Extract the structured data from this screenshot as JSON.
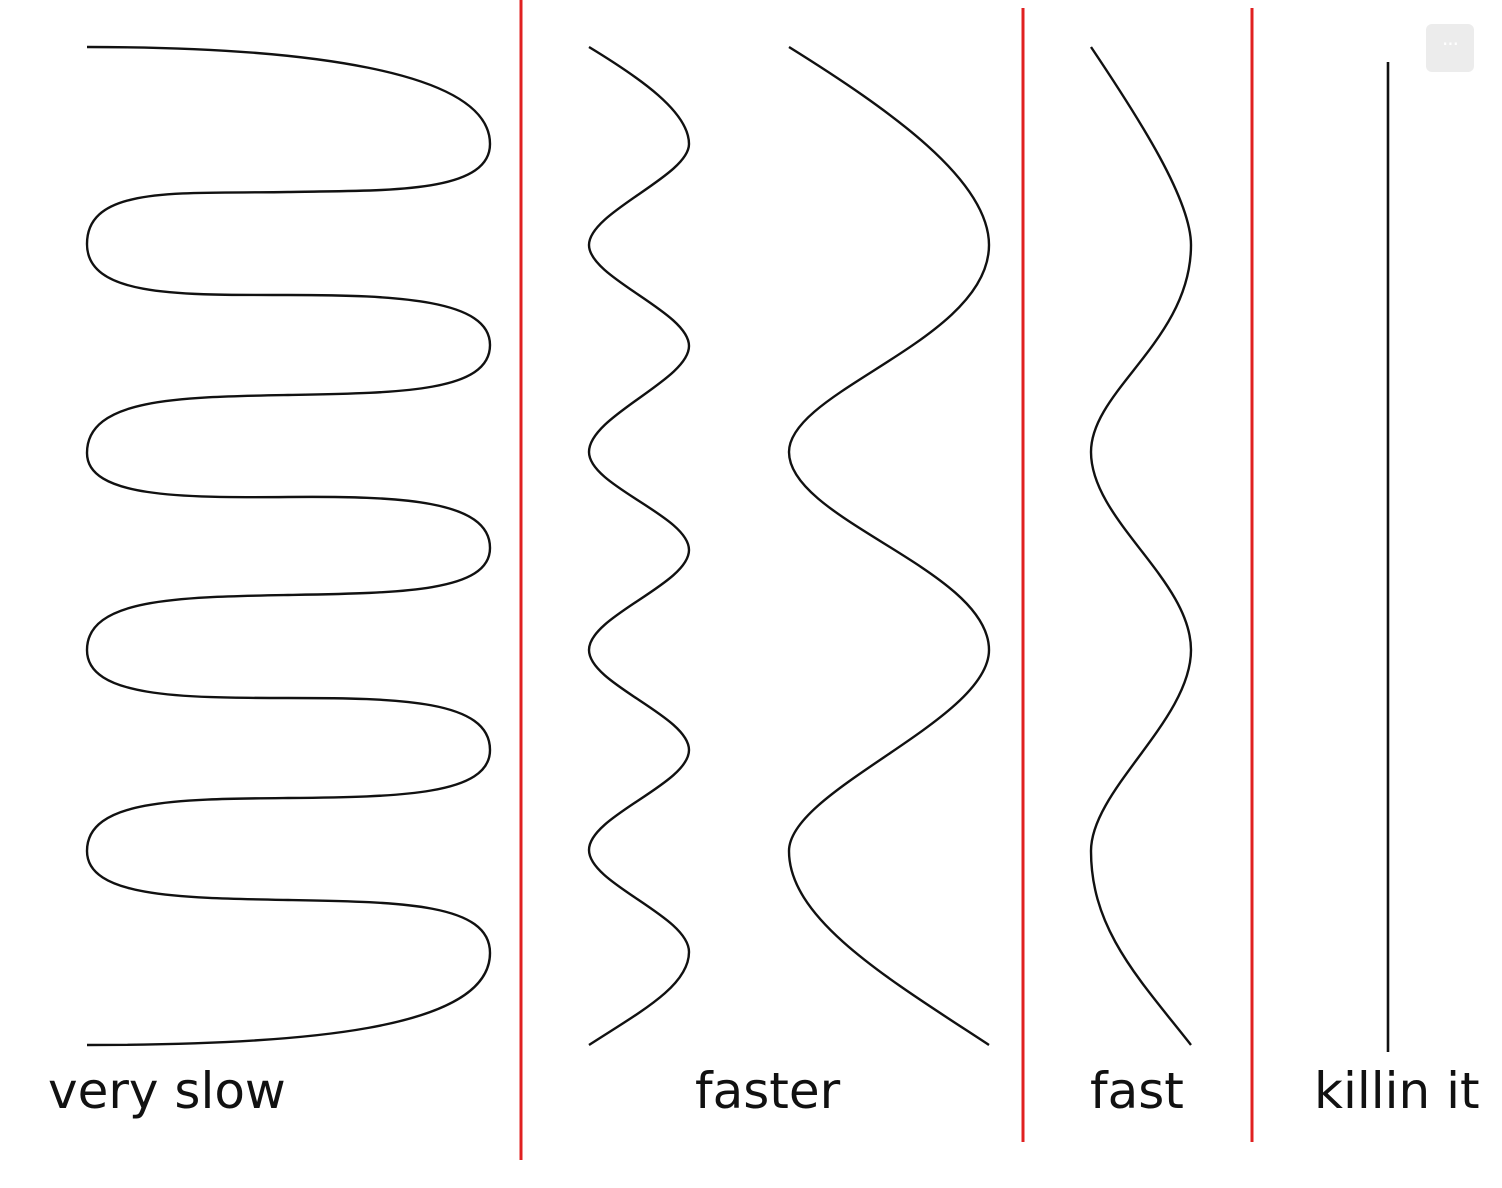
{
  "labels": {
    "very_slow": "very slow",
    "faster": "faster",
    "fast": "fast",
    "killin_it": "killin it"
  },
  "toolbar": {
    "more_icon": "more-horizontal-icon",
    "more_glyph": "···"
  },
  "colors": {
    "divider": "#e02020",
    "stroke": "#111111",
    "text": "#111111"
  }
}
